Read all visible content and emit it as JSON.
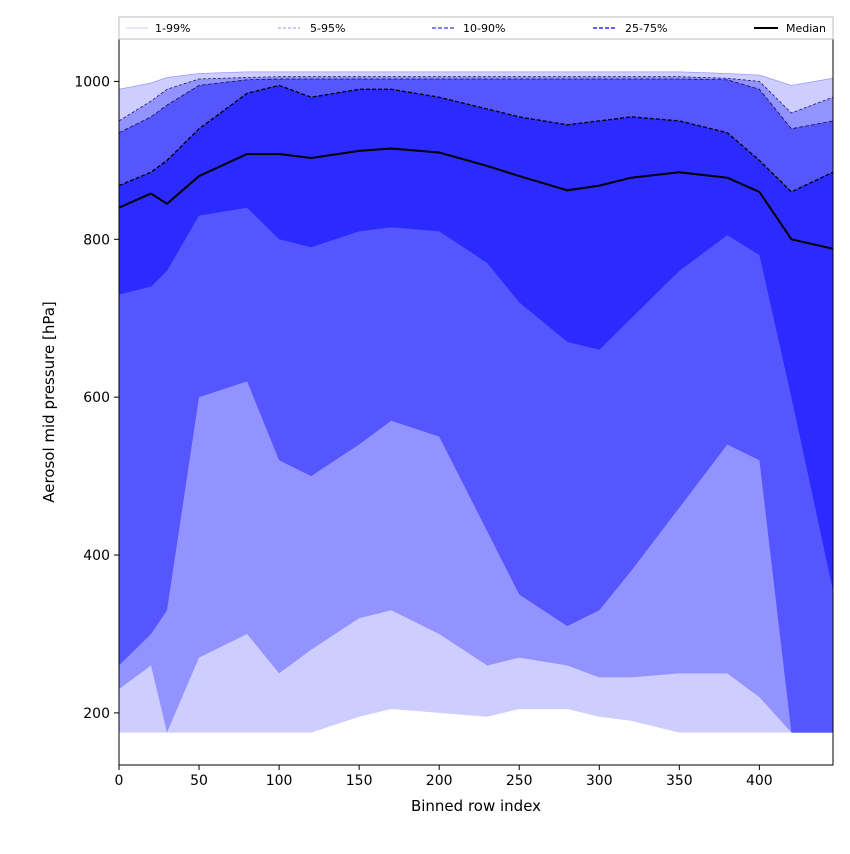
{
  "chart_data": {
    "type": "area",
    "title": "",
    "xlabel": "Binned row index",
    "ylabel": "Aerosol mid pressure [hPa]",
    "xlim": [
      0,
      446
    ],
    "ylim": [
      134,
      1055
    ],
    "xticks": [
      0,
      50,
      100,
      150,
      200,
      250,
      300,
      350,
      400
    ],
    "yticks": [
      200,
      400,
      600,
      800,
      1000
    ],
    "legend_position": "top (above plot, full width)",
    "colors": {
      "band_1_99": "#cdcdff",
      "band_5_95": "#9393ff",
      "band_10_90": "#5656ff",
      "band_25_75": "#2b2bff",
      "median": "#000000"
    },
    "legend": [
      {
        "label": "1-99%",
        "style": "solid-faint",
        "color": "#cdcdff"
      },
      {
        "label": "5-95%",
        "style": "dashed",
        "color": "#9393ff"
      },
      {
        "label": "10-90%",
        "style": "dashed",
        "color": "#5656ff"
      },
      {
        "label": "25-75%",
        "style": "dashed",
        "color": "#2b2bff"
      },
      {
        "label": "Median",
        "style": "solid",
        "color": "#000000"
      }
    ],
    "x": [
      0,
      20,
      30,
      50,
      80,
      100,
      120,
      150,
      170,
      200,
      230,
      250,
      280,
      300,
      320,
      350,
      380,
      400,
      420,
      446
    ],
    "series": [
      {
        "name": "1-99%",
        "lower": [
          175,
          175,
          175,
          175,
          175,
          175,
          175,
          195,
          205,
          200,
          195,
          205,
          205,
          195,
          190,
          175,
          175,
          175,
          175,
          175
        ],
        "upper": [
          990,
          998,
          1005,
          1010,
          1012,
          1012,
          1012,
          1012,
          1012,
          1012,
          1012,
          1012,
          1012,
          1012,
          1012,
          1012,
          1010,
          1008,
          995,
          1004
        ]
      },
      {
        "name": "5-95%",
        "lower": [
          230,
          260,
          175,
          270,
          300,
          250,
          280,
          320,
          330,
          300,
          260,
          270,
          260,
          245,
          245,
          250,
          250,
          220,
          175,
          175
        ],
        "upper": [
          950,
          975,
          990,
          1003,
          1005,
          1006,
          1006,
          1006,
          1006,
          1006,
          1006,
          1006,
          1006,
          1006,
          1006,
          1006,
          1004,
          1000,
          960,
          980
        ]
      },
      {
        "name": "10-90%",
        "lower": [
          260,
          300,
          330,
          600,
          620,
          520,
          500,
          540,
          570,
          550,
          430,
          350,
          310,
          330,
          380,
          460,
          540,
          520,
          175,
          175
        ],
        "upper": [
          935,
          955,
          970,
          995,
          1002,
          1003,
          1003,
          1003,
          1003,
          1003,
          1003,
          1003,
          1003,
          1003,
          1003,
          1003,
          1002,
          990,
          940,
          950
        ]
      },
      {
        "name": "25-75%",
        "lower": [
          730,
          740,
          760,
          830,
          840,
          800,
          790,
          810,
          815,
          810,
          770,
          720,
          670,
          660,
          700,
          760,
          805,
          780,
          600,
          355
        ],
        "upper": [
          868,
          885,
          900,
          940,
          985,
          995,
          980,
          990,
          990,
          980,
          965,
          955,
          945,
          950,
          955,
          950,
          935,
          900,
          860,
          885
        ]
      },
      {
        "name": "Median",
        "values": [
          840,
          858,
          845,
          880,
          908,
          908,
          903,
          912,
          915,
          910,
          893,
          880,
          862,
          868,
          878,
          885,
          878,
          860,
          800,
          788
        ]
      }
    ]
  }
}
